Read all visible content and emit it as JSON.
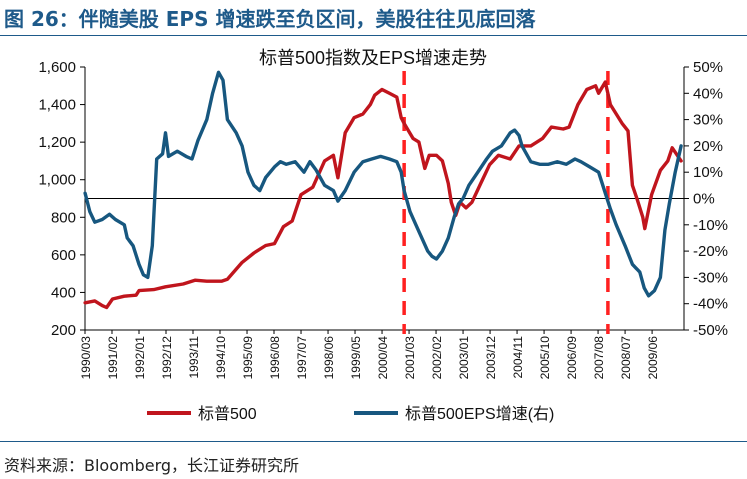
{
  "figure": {
    "title": "图 26：伴随美股 EPS 增速跌至负区间，美股往往见底回落",
    "source": "资料来源：Bloomberg，长江证券研究所"
  },
  "colors": {
    "index_line": "#c0151d",
    "eps_line": "#17577f",
    "dashed_marker": "#ff2020",
    "title": "#1e5a8a",
    "axis": "#000000"
  },
  "chart_data": {
    "type": "line",
    "title": "标普500指数及EPS增速走势",
    "y_left": {
      "min": 200,
      "max": 1600,
      "ticks": [
        200,
        400,
        600,
        800,
        1000,
        1200,
        1400,
        1600
      ],
      "tick_labels": [
        "200",
        "400",
        "600",
        "800",
        "1,000",
        "1,200",
        "1,400",
        "1,600"
      ]
    },
    "y_right": {
      "min": -50,
      "max": 50,
      "ticks": [
        -50,
        -40,
        -30,
        -20,
        -10,
        0,
        10,
        20,
        30,
        40,
        50
      ],
      "tick_labels": [
        "-50%",
        "-40%",
        "-30%",
        "-20%",
        "-10%",
        "0%",
        "10%",
        "20%",
        "30%",
        "40%",
        "50%"
      ]
    },
    "x_range": [
      1990.167,
      2010.5
    ],
    "x_ticks": [
      {
        "t": 1990.167,
        "label": "1990/03"
      },
      {
        "t": 1991.083,
        "label": "1991/02"
      },
      {
        "t": 1992.0,
        "label": "1992/01"
      },
      {
        "t": 1992.917,
        "label": "1992/12"
      },
      {
        "t": 1993.833,
        "label": "1993/11"
      },
      {
        "t": 1994.75,
        "label": "1994/10"
      },
      {
        "t": 1995.667,
        "label": "1995/09"
      },
      {
        "t": 1996.583,
        "label": "1996/08"
      },
      {
        "t": 1997.5,
        "label": "1997/07"
      },
      {
        "t": 1998.417,
        "label": "1998/06"
      },
      {
        "t": 1999.333,
        "label": "1999/05"
      },
      {
        "t": 2000.25,
        "label": "2000/04"
      },
      {
        "t": 2001.167,
        "label": "2001/03"
      },
      {
        "t": 2002.083,
        "label": "2002/02"
      },
      {
        "t": 2003.0,
        "label": "2003/01"
      },
      {
        "t": 2003.917,
        "label": "2003/12"
      },
      {
        "t": 2004.833,
        "label": "2004/11"
      },
      {
        "t": 2005.75,
        "label": "2005/10"
      },
      {
        "t": 2006.667,
        "label": "2006/09"
      },
      {
        "t": 2007.583,
        "label": "2007/08"
      },
      {
        "t": 2008.5,
        "label": "2008/07"
      },
      {
        "t": 2009.417,
        "label": "2009/06"
      }
    ],
    "markers": [
      2001.0,
      2007.917
    ],
    "series": [
      {
        "name": "标普500",
        "axis": "left",
        "points": [
          [
            1990.17,
            345
          ],
          [
            1990.5,
            355
          ],
          [
            1990.75,
            330
          ],
          [
            1990.9,
            320
          ],
          [
            1991.1,
            365
          ],
          [
            1991.5,
            380
          ],
          [
            1991.9,
            385
          ],
          [
            1992.0,
            410
          ],
          [
            1992.5,
            415
          ],
          [
            1992.9,
            430
          ],
          [
            1993.5,
            445
          ],
          [
            1993.9,
            465
          ],
          [
            1994.3,
            460
          ],
          [
            1994.8,
            460
          ],
          [
            1995.0,
            470
          ],
          [
            1995.5,
            560
          ],
          [
            1995.9,
            610
          ],
          [
            1996.3,
            650
          ],
          [
            1996.6,
            660
          ],
          [
            1996.9,
            750
          ],
          [
            1997.2,
            780
          ],
          [
            1997.5,
            920
          ],
          [
            1997.9,
            960
          ],
          [
            1998.3,
            1100
          ],
          [
            1998.6,
            1130
          ],
          [
            1998.75,
            1010
          ],
          [
            1999.0,
            1250
          ],
          [
            1999.3,
            1330
          ],
          [
            1999.6,
            1350
          ],
          [
            1999.85,
            1400
          ],
          [
            2000.0,
            1450
          ],
          [
            2000.25,
            1480
          ],
          [
            2000.5,
            1460
          ],
          [
            2000.75,
            1440
          ],
          [
            2000.9,
            1330
          ],
          [
            2001.0,
            1300
          ],
          [
            2001.3,
            1220
          ],
          [
            2001.5,
            1200
          ],
          [
            2001.7,
            1060
          ],
          [
            2001.85,
            1130
          ],
          [
            2002.1,
            1130
          ],
          [
            2002.3,
            1100
          ],
          [
            2002.5,
            980
          ],
          [
            2002.6,
            880
          ],
          [
            2002.75,
            810
          ],
          [
            2002.9,
            880
          ],
          [
            2003.1,
            850
          ],
          [
            2003.3,
            880
          ],
          [
            2003.6,
            980
          ],
          [
            2003.9,
            1080
          ],
          [
            2004.2,
            1130
          ],
          [
            2004.6,
            1110
          ],
          [
            2004.9,
            1180
          ],
          [
            2005.3,
            1180
          ],
          [
            2005.7,
            1220
          ],
          [
            2006.0,
            1280
          ],
          [
            2006.4,
            1270
          ],
          [
            2006.6,
            1280
          ],
          [
            2006.9,
            1400
          ],
          [
            2007.2,
            1480
          ],
          [
            2007.5,
            1500
          ],
          [
            2007.6,
            1460
          ],
          [
            2007.83,
            1520
          ],
          [
            2008.0,
            1400
          ],
          [
            2008.4,
            1300
          ],
          [
            2008.6,
            1260
          ],
          [
            2008.75,
            970
          ],
          [
            2008.9,
            900
          ],
          [
            2009.1,
            800
          ],
          [
            2009.17,
            740
          ],
          [
            2009.4,
            920
          ],
          [
            2009.7,
            1050
          ],
          [
            2009.95,
            1100
          ],
          [
            2010.1,
            1170
          ],
          [
            2010.4,
            1100
          ]
        ]
      },
      {
        "name": "标普500EPS增速(右)",
        "axis": "right",
        "points": [
          [
            1990.17,
            2
          ],
          [
            1990.33,
            -5
          ],
          [
            1990.5,
            -9
          ],
          [
            1990.75,
            -8
          ],
          [
            1991.0,
            -6
          ],
          [
            1991.2,
            -8
          ],
          [
            1991.5,
            -10
          ],
          [
            1991.6,
            -15
          ],
          [
            1991.8,
            -18
          ],
          [
            1992.0,
            -25
          ],
          [
            1992.15,
            -29
          ],
          [
            1992.3,
            -30
          ],
          [
            1992.45,
            -18
          ],
          [
            1992.6,
            15
          ],
          [
            1992.8,
            17
          ],
          [
            1992.9,
            25
          ],
          [
            1993.0,
            16
          ],
          [
            1993.3,
            18
          ],
          [
            1993.6,
            16
          ],
          [
            1993.8,
            15
          ],
          [
            1994.0,
            22
          ],
          [
            1994.3,
            30
          ],
          [
            1994.5,
            40
          ],
          [
            1994.7,
            48
          ],
          [
            1994.85,
            45
          ],
          [
            1995.0,
            30
          ],
          [
            1995.3,
            25
          ],
          [
            1995.5,
            20
          ],
          [
            1995.7,
            10
          ],
          [
            1995.9,
            5
          ],
          [
            1996.1,
            3
          ],
          [
            1996.3,
            8
          ],
          [
            1996.6,
            12
          ],
          [
            1996.8,
            14
          ],
          [
            1997.0,
            13
          ],
          [
            1997.3,
            14
          ],
          [
            1997.6,
            10
          ],
          [
            1997.8,
            14
          ],
          [
            1998.0,
            11
          ],
          [
            1998.3,
            5
          ],
          [
            1998.6,
            3
          ],
          [
            1998.75,
            -1
          ],
          [
            1999.0,
            3
          ],
          [
            1999.3,
            10
          ],
          [
            1999.6,
            14
          ],
          [
            1999.9,
            15
          ],
          [
            2000.2,
            16
          ],
          [
            2000.5,
            15
          ],
          [
            2000.75,
            14
          ],
          [
            2000.9,
            10
          ],
          [
            2001.0,
            3
          ],
          [
            2001.2,
            -5
          ],
          [
            2001.4,
            -10
          ],
          [
            2001.6,
            -15
          ],
          [
            2001.8,
            -20
          ],
          [
            2001.95,
            -22
          ],
          [
            2002.1,
            -23
          ],
          [
            2002.3,
            -20
          ],
          [
            2002.5,
            -15
          ],
          [
            2002.7,
            -7
          ],
          [
            2002.85,
            -2
          ],
          [
            2003.0,
            0
          ],
          [
            2003.2,
            5
          ],
          [
            2003.5,
            10
          ],
          [
            2003.8,
            15
          ],
          [
            2004.0,
            18
          ],
          [
            2004.3,
            20
          ],
          [
            2004.6,
            25
          ],
          [
            2004.75,
            26
          ],
          [
            2004.9,
            24
          ],
          [
            2005.0,
            20
          ],
          [
            2005.3,
            14
          ],
          [
            2005.6,
            13
          ],
          [
            2005.9,
            13
          ],
          [
            2006.2,
            14
          ],
          [
            2006.5,
            13
          ],
          [
            2006.8,
            15
          ],
          [
            2007.0,
            14
          ],
          [
            2007.3,
            12
          ],
          [
            2007.6,
            10
          ],
          [
            2007.83,
            2
          ],
          [
            2008.0,
            -4
          ],
          [
            2008.2,
            -10
          ],
          [
            2008.5,
            -18
          ],
          [
            2008.75,
            -25
          ],
          [
            2009.0,
            -28
          ],
          [
            2009.15,
            -34
          ],
          [
            2009.3,
            -37
          ],
          [
            2009.5,
            -35
          ],
          [
            2009.7,
            -30
          ],
          [
            2009.85,
            -12
          ],
          [
            2010.0,
            -2
          ],
          [
            2010.2,
            10
          ],
          [
            2010.4,
            20
          ]
        ]
      }
    ],
    "legend": {
      "position": "bottom",
      "labels": [
        "标普500",
        "标普500EPS增速(右)"
      ]
    }
  }
}
